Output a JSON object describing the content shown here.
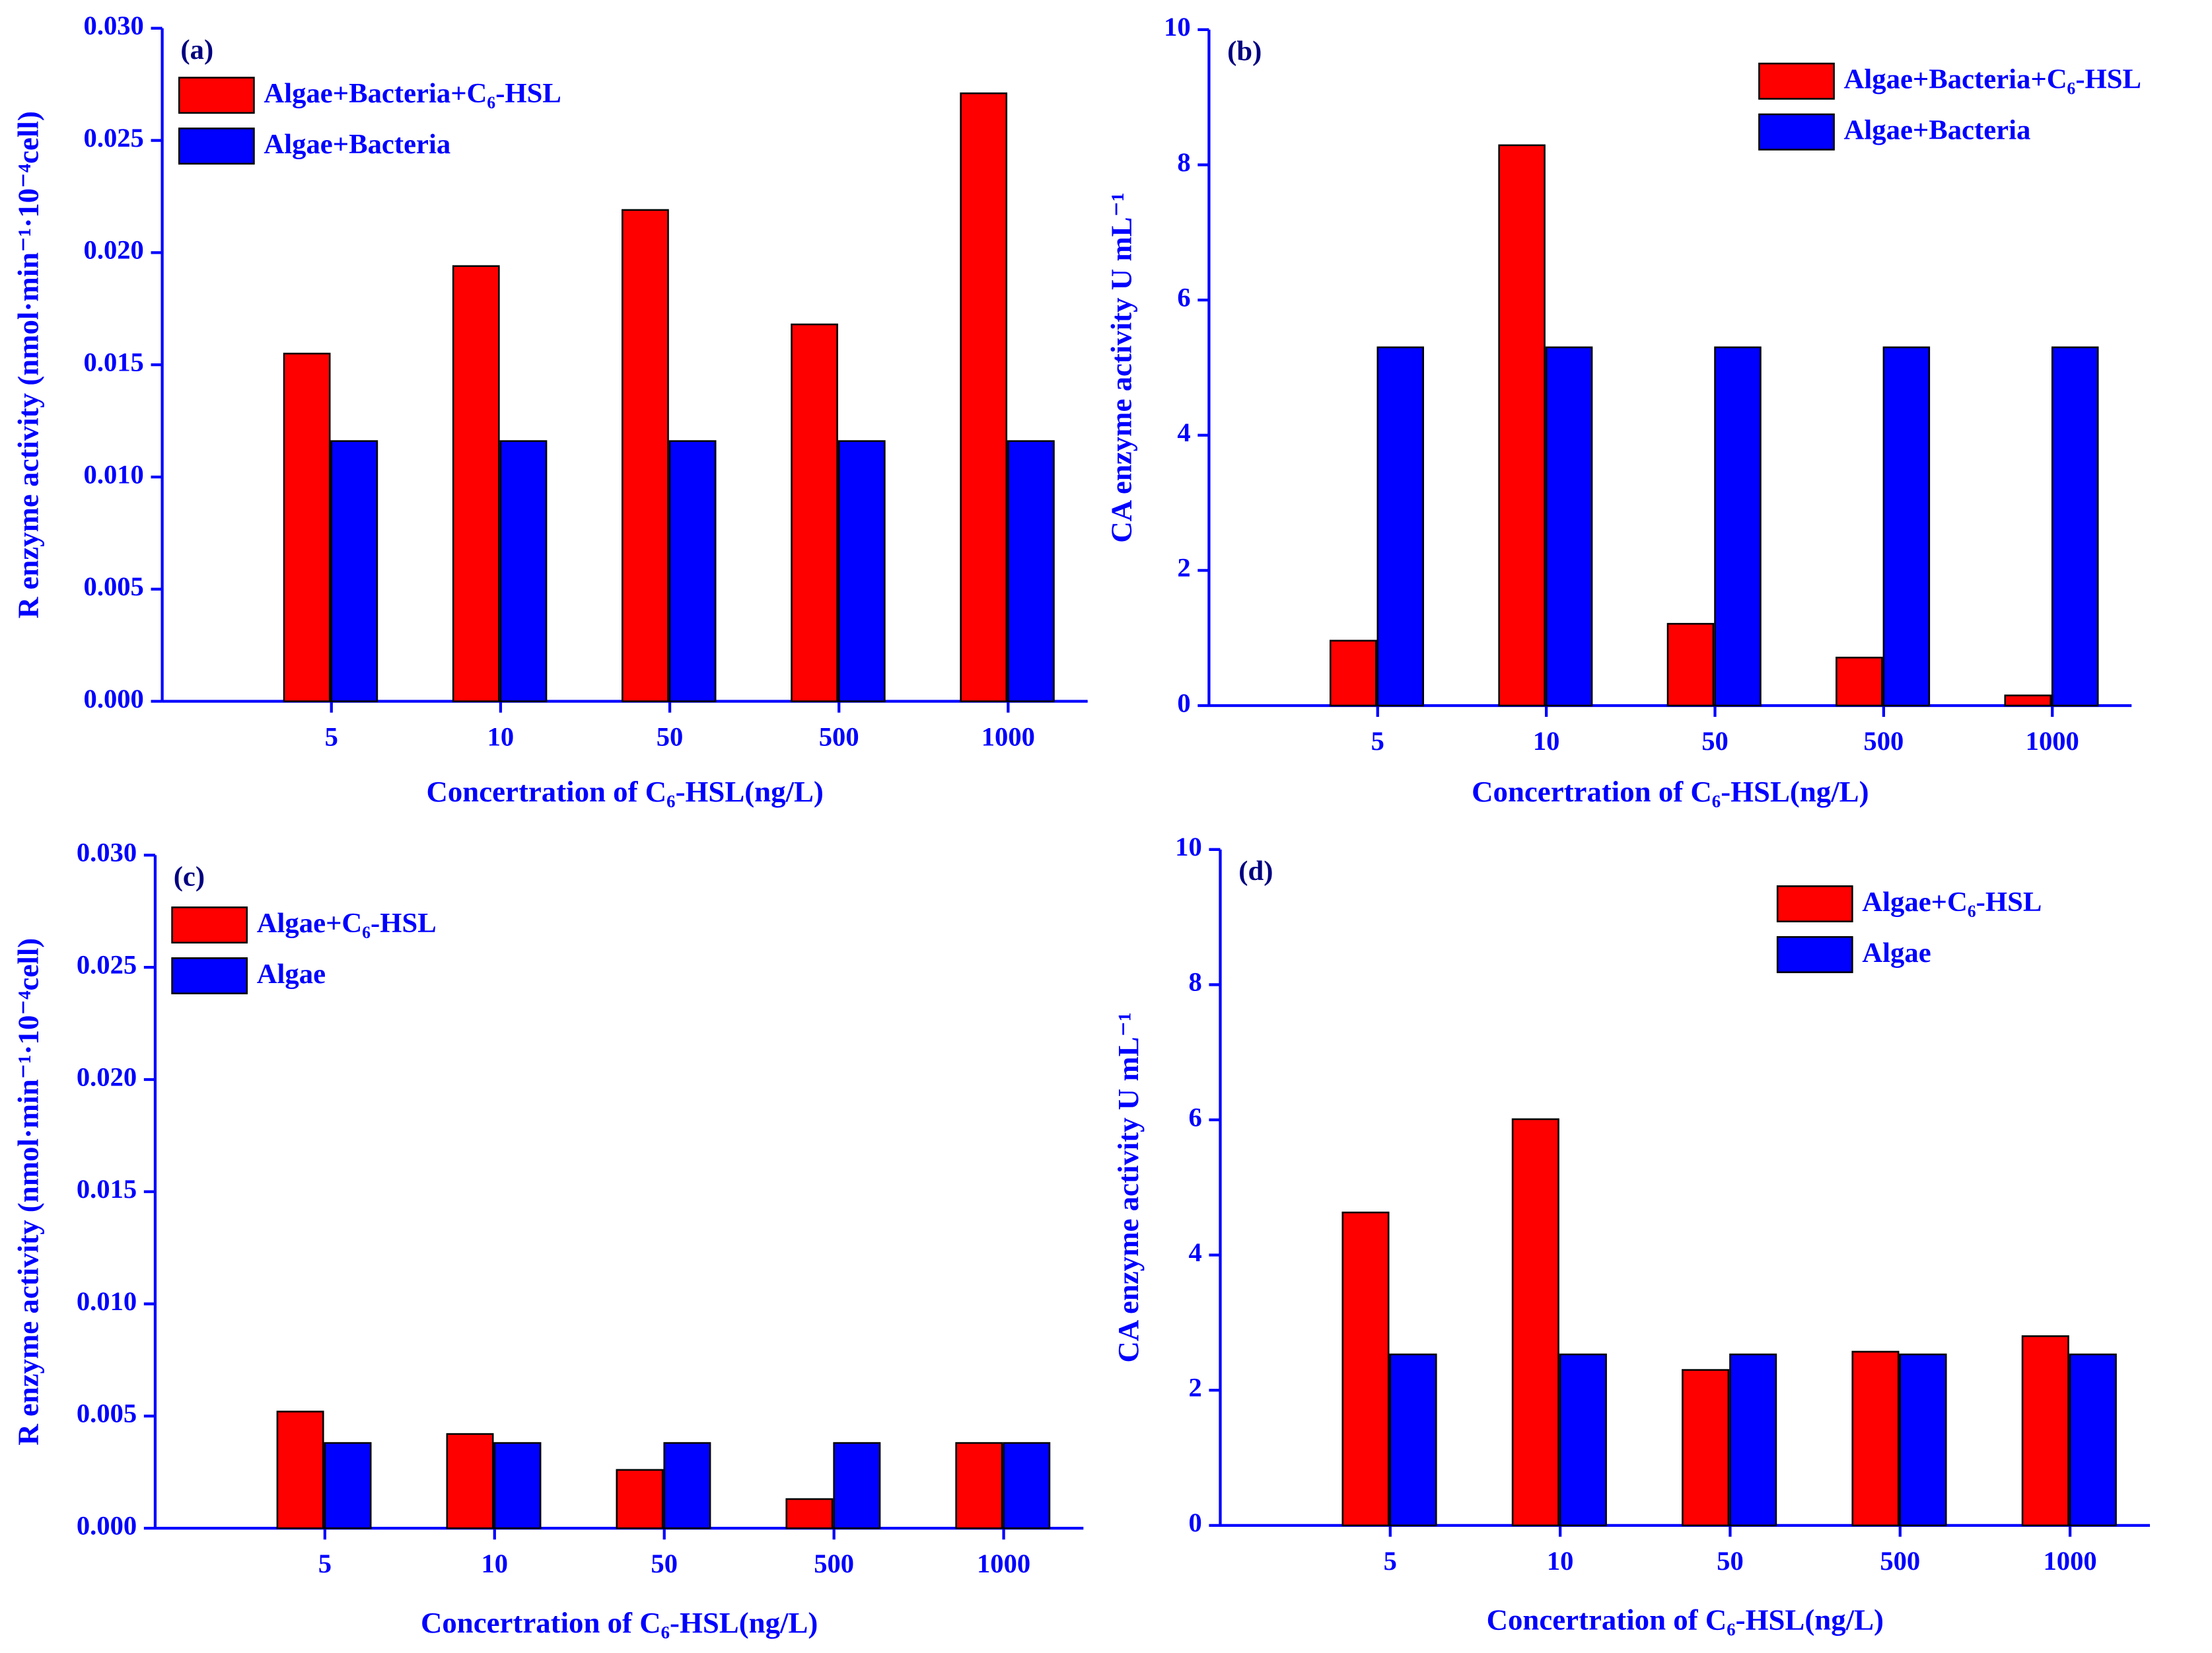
{
  "chart_data": [
    {
      "type": "bar",
      "annotation": "(a)",
      "x_label": "Concertration of C₆-HSL(ng/L)",
      "y_label": "R enzyme activity (nmol·min⁻¹·10⁻⁴cell)",
      "categories": [
        "5",
        "10",
        "50",
        "500",
        "1000"
      ],
      "series": [
        {
          "name": "Algae+Bacteria+C₆-HSL",
          "color": "#ff0000",
          "values": [
            0.0155,
            0.0194,
            0.0219,
            0.0168,
            0.0271
          ]
        },
        {
          "name": "Algae+Bacteria",
          "color": "#0000ff",
          "values": [
            0.0116,
            0.0116,
            0.0116,
            0.0116,
            0.0116
          ]
        }
      ],
      "ylim": [
        0,
        0.03
      ],
      "yticks": [
        {
          "value": 0,
          "label": "0.000"
        },
        {
          "value": 0.005,
          "label": "0.005"
        },
        {
          "value": 0.01,
          "label": "0.010"
        },
        {
          "value": 0.015,
          "label": "0.015"
        },
        {
          "value": 0.02,
          "label": "0.020"
        },
        {
          "value": 0.025,
          "label": "0.025"
        },
        {
          "value": 0.03,
          "label": "0.030"
        }
      ],
      "legend": "upper left"
    },
    {
      "type": "bar",
      "annotation": "(b)",
      "x_label": "Concertration of C₆-HSL(ng/L)",
      "y_label": "CA enzyme activity U mL⁻¹",
      "categories": [
        "5",
        "10",
        "50",
        "500",
        "1000"
      ],
      "series": [
        {
          "name": "Algae+Bacteria+C₆-HSL",
          "color": "#ff0000",
          "values": [
            0.96,
            8.29,
            1.21,
            0.71,
            0.15
          ]
        },
        {
          "name": "Algae+Bacteria",
          "color": "#0000ff",
          "values": [
            5.3,
            5.3,
            5.3,
            5.3,
            5.3
          ]
        }
      ],
      "ylim": [
        0,
        10
      ],
      "yticks": [
        0,
        2,
        4,
        6,
        8,
        10
      ],
      "legend": "upper right"
    },
    {
      "type": "bar",
      "annotation": "(c)",
      "x_label": "Concertration of C₆-HSL(ng/L)",
      "y_label": "R enzyme activity (nmol·min⁻¹·10⁻⁴cell)",
      "categories": [
        "5",
        "10",
        "50",
        "500",
        "1000"
      ],
      "series": [
        {
          "name": "Algae+C₆-HSL",
          "color": "#ff0000",
          "values": [
            0.0052,
            0.0042,
            0.0026,
            0.0013,
            0.0038
          ]
        },
        {
          "name": "Algae",
          "color": "#0000ff",
          "values": [
            0.0038,
            0.0038,
            0.0038,
            0.0038,
            0.0038
          ]
        }
      ],
      "ylim": [
        0,
        0.03
      ],
      "yticks": [
        {
          "value": 0,
          "label": "0.000"
        },
        {
          "value": 0.005,
          "label": "0.005"
        },
        {
          "value": 0.01,
          "label": "0.010"
        },
        {
          "value": 0.015,
          "label": "0.015"
        },
        {
          "value": 0.02,
          "label": "0.020"
        },
        {
          "value": 0.025,
          "label": "0.025"
        },
        {
          "value": 0.03,
          "label": "0.030"
        }
      ],
      "legend": "upper left"
    },
    {
      "type": "bar",
      "annotation": "(d)",
      "x_label": "Concertration of C₆-HSL(ng/L)",
      "y_label": "CA enzyme activity U mL⁻¹",
      "categories": [
        "5",
        "10",
        "50",
        "500",
        "1000"
      ],
      "series": [
        {
          "name": "Algae+C₆-HSL",
          "color": "#ff0000",
          "values": [
            4.63,
            6.01,
            2.3,
            2.57,
            2.8
          ]
        },
        {
          "name": "Algae",
          "color": "#0000ff",
          "values": [
            2.53,
            2.53,
            2.53,
            2.53,
            2.53
          ]
        }
      ],
      "ylim": [
        0,
        10
      ],
      "yticks": [
        0,
        2,
        4,
        6,
        8,
        10
      ],
      "legend": "upper right"
    }
  ]
}
